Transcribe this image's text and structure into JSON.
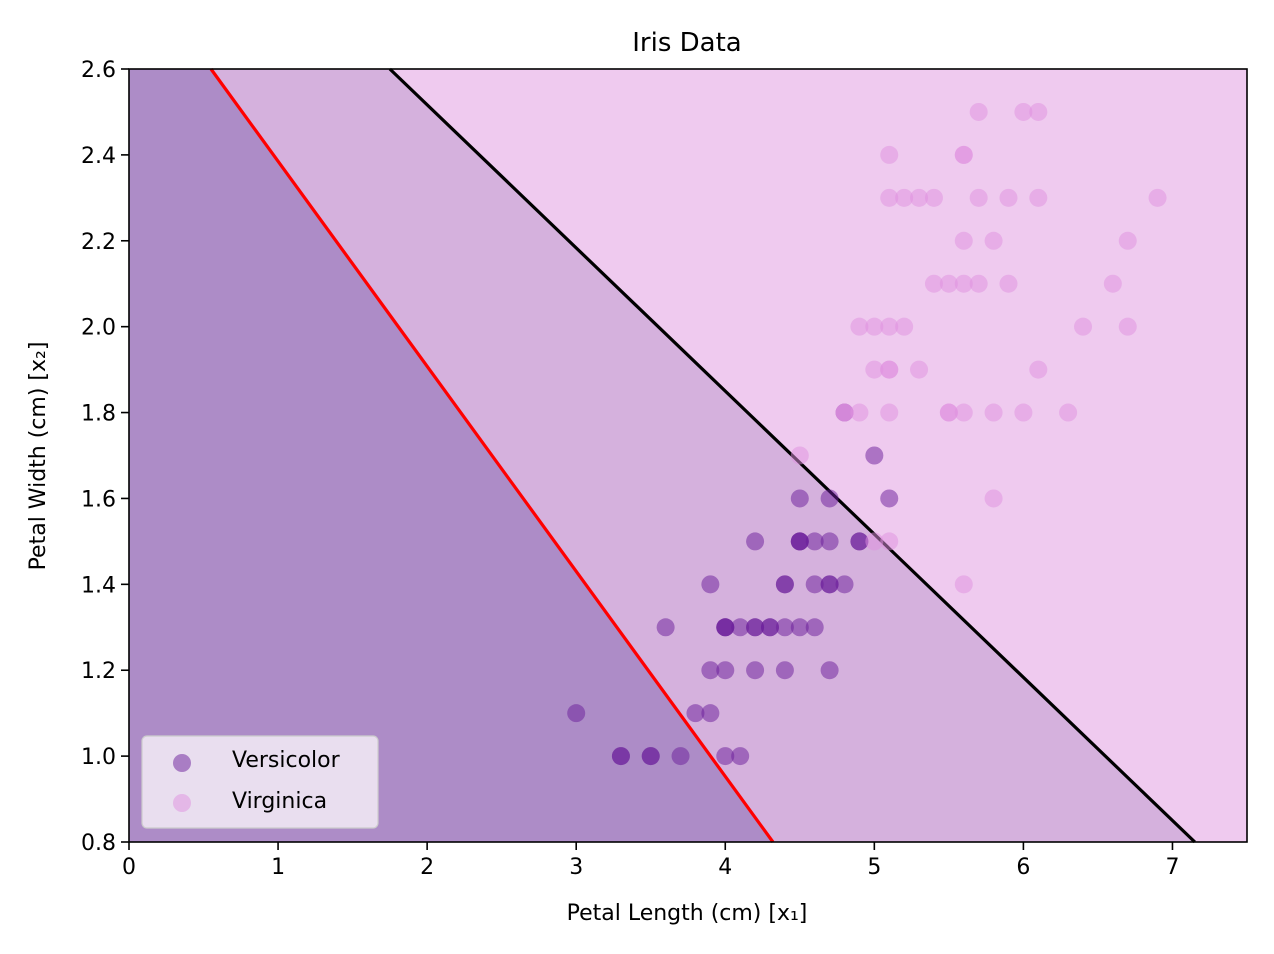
{
  "chart_data": {
    "type": "scatter",
    "title": "Iris Data",
    "xlabel": "Petal Length (cm) [x₁]",
    "ylabel": "Petal Width (cm) [x₂]",
    "xlim": [
      0,
      7.5
    ],
    "ylim": [
      0.8,
      2.6
    ],
    "xticks": [
      "0",
      "1",
      "2",
      "3",
      "4",
      "5",
      "6",
      "7"
    ],
    "yticks": [
      "0.8",
      "1.0",
      "1.2",
      "1.4",
      "1.6",
      "1.8",
      "2.0",
      "2.2",
      "2.4",
      "2.6"
    ],
    "grid": false,
    "legend_position": "lower-left",
    "regions": [
      {
        "color": "#ad8cc7",
        "below_line": "red"
      },
      {
        "color": "#d5b1dd",
        "between_lines": [
          "red",
          "black"
        ]
      },
      {
        "color": "#efcaef",
        "above_line": "black"
      }
    ],
    "lines": [
      {
        "color": "#ff0000",
        "points": [
          [
            0.55,
            2.6
          ],
          [
            4.32,
            0.8
          ]
        ]
      },
      {
        "color": "#000000",
        "points": [
          [
            1.75,
            2.6
          ],
          [
            7.15,
            0.8
          ]
        ]
      }
    ],
    "series": [
      {
        "name": "Versicolor",
        "color": "#6a1b9a",
        "points": [
          [
            3.3,
            1.0
          ],
          [
            3.3,
            1.0
          ],
          [
            3.5,
            1.0
          ],
          [
            3.5,
            1.0
          ],
          [
            3.7,
            1.0
          ],
          [
            4.0,
            1.0
          ],
          [
            4.1,
            1.0
          ],
          [
            3.0,
            1.1
          ],
          [
            3.8,
            1.1
          ],
          [
            3.9,
            1.1
          ],
          [
            3.9,
            1.2
          ],
          [
            4.0,
            1.2
          ],
          [
            4.2,
            1.2
          ],
          [
            4.4,
            1.2
          ],
          [
            4.7,
            1.2
          ],
          [
            3.6,
            1.3
          ],
          [
            4.0,
            1.3
          ],
          [
            4.0,
            1.3
          ],
          [
            4.0,
            1.3
          ],
          [
            4.1,
            1.3
          ],
          [
            4.2,
            1.3
          ],
          [
            4.2,
            1.3
          ],
          [
            4.3,
            1.3
          ],
          [
            4.3,
            1.3
          ],
          [
            4.4,
            1.3
          ],
          [
            4.5,
            1.3
          ],
          [
            4.6,
            1.3
          ],
          [
            3.9,
            1.4
          ],
          [
            4.4,
            1.4
          ],
          [
            4.4,
            1.4
          ],
          [
            4.6,
            1.4
          ],
          [
            4.7,
            1.4
          ],
          [
            4.7,
            1.4
          ],
          [
            4.8,
            1.4
          ],
          [
            4.2,
            1.5
          ],
          [
            4.5,
            1.5
          ],
          [
            4.5,
            1.5
          ],
          [
            4.5,
            1.5
          ],
          [
            4.6,
            1.5
          ],
          [
            4.7,
            1.5
          ],
          [
            4.9,
            1.5
          ],
          [
            4.9,
            1.5
          ],
          [
            4.5,
            1.6
          ],
          [
            4.7,
            1.6
          ],
          [
            5.1,
            1.6
          ],
          [
            5.0,
            1.7
          ],
          [
            4.8,
            1.8
          ]
        ]
      },
      {
        "name": "Virginica",
        "color": "#e08fe0",
        "points": [
          [
            5.6,
            1.4
          ],
          [
            5.0,
            1.5
          ],
          [
            5.1,
            1.5
          ],
          [
            5.8,
            1.6
          ],
          [
            4.5,
            1.7
          ],
          [
            4.8,
            1.8
          ],
          [
            4.8,
            1.8
          ],
          [
            4.9,
            1.8
          ],
          [
            5.1,
            1.8
          ],
          [
            5.5,
            1.8
          ],
          [
            5.5,
            1.8
          ],
          [
            5.6,
            1.8
          ],
          [
            5.8,
            1.8
          ],
          [
            6.0,
            1.8
          ],
          [
            6.3,
            1.8
          ],
          [
            5.0,
            1.9
          ],
          [
            5.1,
            1.9
          ],
          [
            5.1,
            1.9
          ],
          [
            5.3,
            1.9
          ],
          [
            6.1,
            1.9
          ],
          [
            4.9,
            2.0
          ],
          [
            5.0,
            2.0
          ],
          [
            5.1,
            2.0
          ],
          [
            5.2,
            2.0
          ],
          [
            6.4,
            2.0
          ],
          [
            6.7,
            2.0
          ],
          [
            5.4,
            2.1
          ],
          [
            5.5,
            2.1
          ],
          [
            5.6,
            2.1
          ],
          [
            5.7,
            2.1
          ],
          [
            5.9,
            2.1
          ],
          [
            6.6,
            2.1
          ],
          [
            5.6,
            2.2
          ],
          [
            5.8,
            2.2
          ],
          [
            6.7,
            2.2
          ],
          [
            5.1,
            2.3
          ],
          [
            5.2,
            2.3
          ],
          [
            5.3,
            2.3
          ],
          [
            5.4,
            2.3
          ],
          [
            5.7,
            2.3
          ],
          [
            5.9,
            2.3
          ],
          [
            6.1,
            2.3
          ],
          [
            6.9,
            2.3
          ],
          [
            5.1,
            2.4
          ],
          [
            5.6,
            2.4
          ],
          [
            5.6,
            2.4
          ],
          [
            5.7,
            2.5
          ],
          [
            6.0,
            2.5
          ],
          [
            6.1,
            2.5
          ]
        ]
      }
    ]
  }
}
